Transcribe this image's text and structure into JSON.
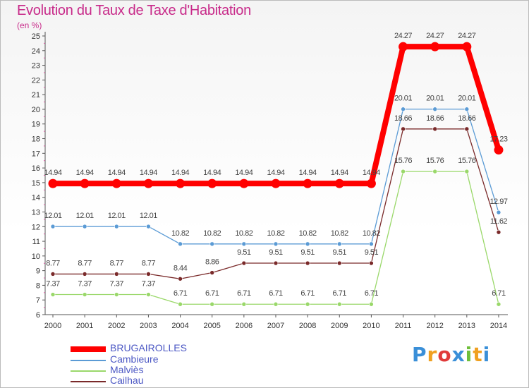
{
  "chart_data": {
    "type": "line",
    "title": "Evolution du Taux de Taxe d'Habitation",
    "ylabel": "(en %)",
    "xlabel": "",
    "ylim": [
      6,
      25
    ],
    "yticks": [
      "6",
      "7",
      "8",
      "9",
      "10",
      "11",
      "12",
      "13",
      "14",
      "15",
      "16",
      "17",
      "18",
      "19",
      "20",
      "21",
      "22",
      "23",
      "24",
      "25"
    ],
    "categories": [
      "2000",
      "2001",
      "2002",
      "2003",
      "2004",
      "2005",
      "2006",
      "2007",
      "2008",
      "2009",
      "2010",
      "2011",
      "2012",
      "2013",
      "2014"
    ],
    "series": [
      {
        "name": "BRUGAIROLLES",
        "color": "#ff0000",
        "values": [
          14.94,
          14.94,
          14.94,
          14.94,
          14.94,
          14.94,
          14.94,
          14.94,
          14.94,
          14.94,
          14.94,
          24.27,
          24.27,
          24.27,
          17.23
        ],
        "labels": [
          "14.94",
          "14.94",
          "14.94",
          "14.94",
          "14.94",
          "14.94",
          "14.94",
          "14.94",
          "14.94",
          "14.94",
          "14.94",
          "24.27",
          "24.27",
          "24.27",
          "17.23"
        ]
      },
      {
        "name": "Cambieure",
        "color": "#5b9bd5",
        "values": [
          12.01,
          12.01,
          12.01,
          12.01,
          10.82,
          10.82,
          10.82,
          10.82,
          10.82,
          10.82,
          10.82,
          20.01,
          20.01,
          20.01,
          12.97
        ],
        "labels": [
          "12.01",
          "12.01",
          "12.01",
          "12.01",
          "10.82",
          "10.82",
          "10.82",
          "10.82",
          "10.82",
          "10.82",
          "10.82",
          "20.01",
          "20.01",
          "20.01",
          "12.97"
        ]
      },
      {
        "name": "Malviès",
        "color": "#9ad86a",
        "values": [
          7.37,
          7.37,
          7.37,
          7.37,
          6.71,
          6.71,
          6.71,
          6.71,
          6.71,
          6.71,
          6.71,
          15.76,
          15.76,
          15.76,
          6.71
        ],
        "labels": [
          "7.37",
          "7.37",
          "7.37",
          "7.37",
          "6.71",
          "6.71",
          "6.71",
          "6.71",
          "6.71",
          "6.71",
          "6.71",
          "15.76",
          "15.76",
          "15.76",
          "6.71"
        ]
      },
      {
        "name": "Cailhau",
        "color": "#7a2a2a",
        "values": [
          8.77,
          8.77,
          8.77,
          8.77,
          8.44,
          8.86,
          9.51,
          9.51,
          9.51,
          9.51,
          9.51,
          18.66,
          18.66,
          18.66,
          11.62
        ],
        "labels": [
          "8.77",
          "8.77",
          "8.77",
          "8.77",
          "8.44",
          "8.86",
          "9.51",
          "9.51",
          "9.51",
          "9.51",
          "9.51",
          "18.66",
          "18.66",
          "18.66",
          "11.62"
        ]
      }
    ],
    "legend_position": "bottom-left",
    "grid": false
  },
  "logo": {
    "text": "Proxiti",
    "letters": [
      "P",
      "r",
      "o",
      "x",
      "i",
      "t",
      "i"
    ],
    "colors": [
      "#3a8fd8",
      "#f0a020",
      "#e03a3a",
      "#3a8fd8",
      "#6fbf3a",
      "#f0a020",
      "#3a8fd8"
    ]
  }
}
